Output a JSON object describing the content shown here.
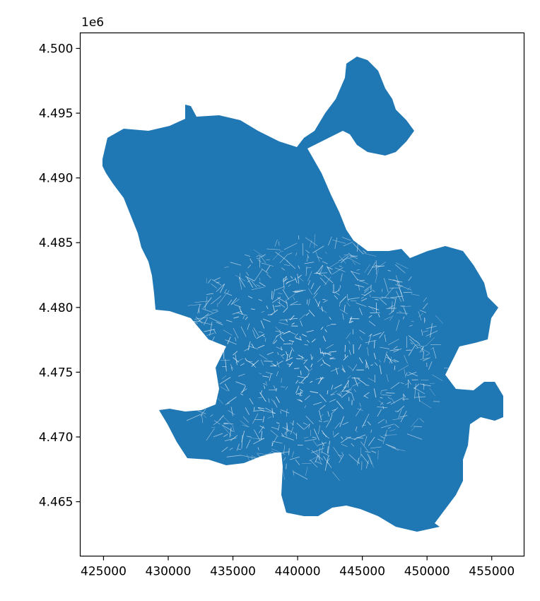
{
  "chart_data": {
    "type": "map",
    "title": "",
    "xlabel": "",
    "ylabel": "",
    "y_offset_label": "1e6",
    "xlim": [
      423200,
      457500
    ],
    "ylim": [
      4460800,
      4501200
    ],
    "x_ticks": [
      425000,
      430000,
      435000,
      440000,
      445000,
      450000,
      455000
    ],
    "x_tick_labels": [
      "425000",
      "430000",
      "435000",
      "440000",
      "445000",
      "450000",
      "455000"
    ],
    "y_ticks": [
      4.465,
      4.47,
      4.475,
      4.48,
      4.485,
      4.49,
      4.495,
      4.5
    ],
    "y_tick_labels": [
      "4.465",
      "4.470",
      "4.475",
      "4.480",
      "4.485",
      "4.490",
      "4.495",
      "4.500"
    ],
    "fill_color": "#1f77b4",
    "edge_color": "#ffffff",
    "grid": false
  }
}
